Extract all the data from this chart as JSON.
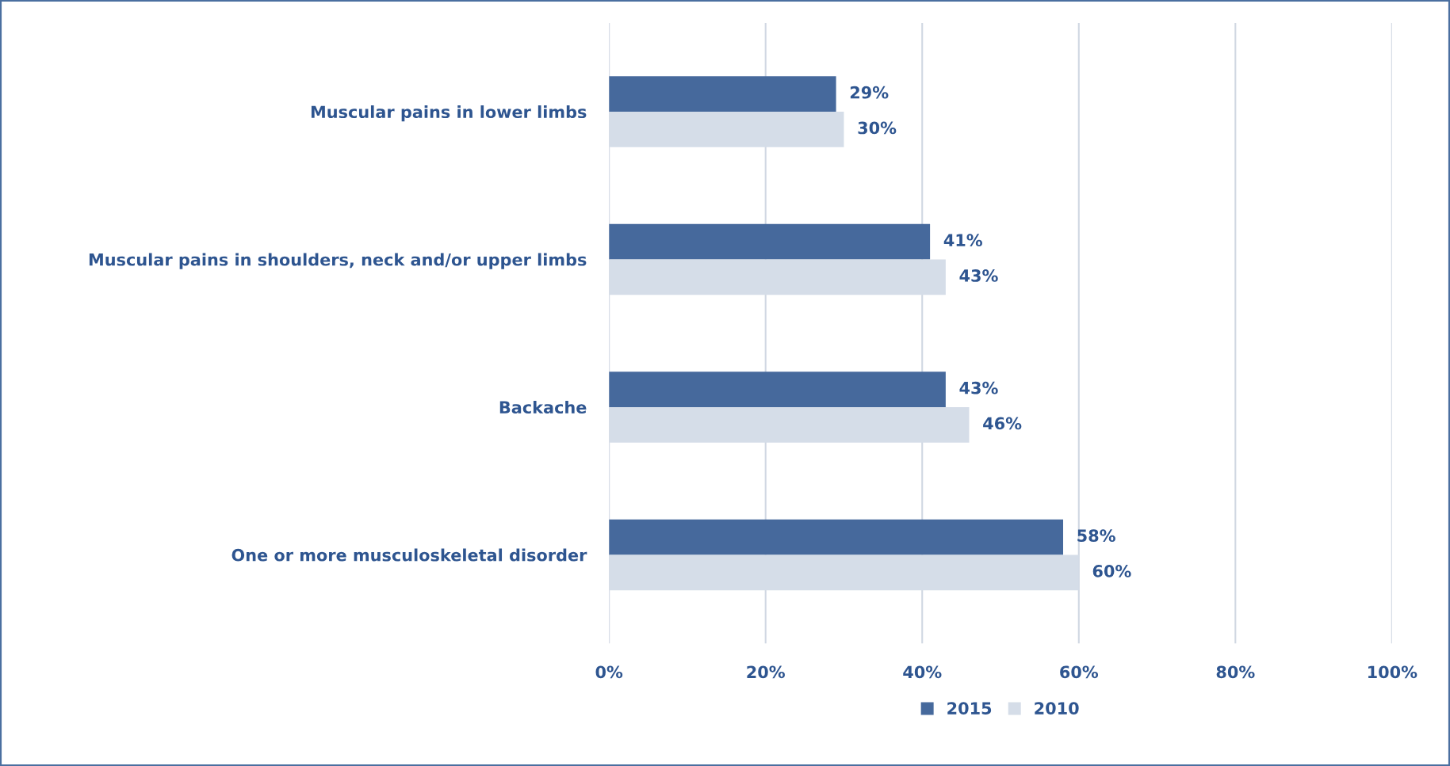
{
  "chart_data": {
    "type": "bar",
    "orientation": "horizontal",
    "categories": [
      "Muscular pains in lower limbs",
      "Muscular pains in shoulders, neck and/or upper limbs",
      "Backache",
      "One or more musculoskeletal disorder"
    ],
    "series": [
      {
        "name": "2015",
        "color": "#46699c",
        "values": [
          29,
          41,
          43,
          58
        ],
        "value_labels": [
          "29%",
          "41%",
          "43%",
          "58%"
        ]
      },
      {
        "name": "2010",
        "color": "#d5dde8",
        "values": [
          30,
          43,
          46,
          60
        ],
        "value_labels": [
          "30%",
          "43%",
          "46%",
          "60%"
        ]
      }
    ],
    "xlim": [
      0,
      100
    ],
    "xticks": [
      {
        "value": 0,
        "label": "0%"
      },
      {
        "value": 20,
        "label": "20%"
      },
      {
        "value": 40,
        "label": "40%"
      },
      {
        "value": 60,
        "label": "60%"
      },
      {
        "value": 80,
        "label": "80%"
      },
      {
        "value": 100,
        "label": "100%"
      }
    ],
    "grid": "x",
    "legend": "bottom"
  }
}
